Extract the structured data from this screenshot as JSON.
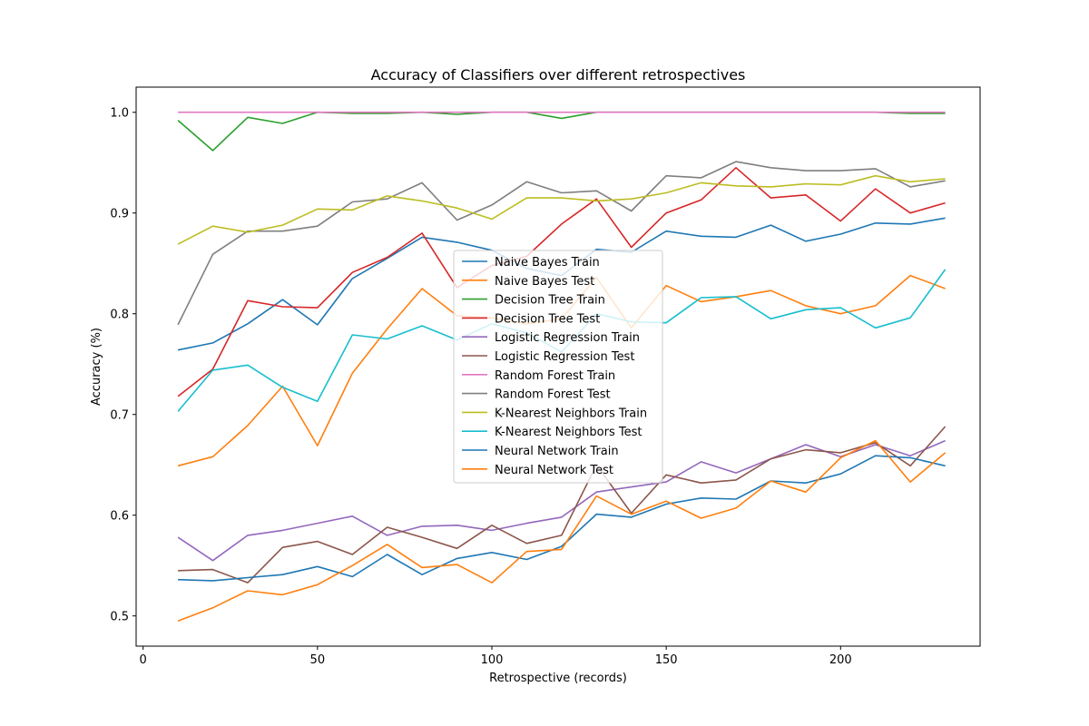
{
  "chart_data": {
    "type": "line",
    "title": "Accuracy of Classifiers over different retrospectives",
    "xlabel": "Retrospective (records)",
    "ylabel": "Accuracy (%)",
    "xlim": [
      -2,
      240
    ],
    "ylim": [
      0.47,
      1.025
    ],
    "xticks": [
      0,
      50,
      100,
      150,
      200
    ],
    "yticks": [
      0.5,
      0.6,
      0.7,
      0.8,
      0.9,
      1.0
    ],
    "ytick_labels": [
      "0.5",
      "0.6",
      "0.7",
      "0.8",
      "0.9",
      "1.0"
    ],
    "grid": false,
    "legend_position": "center",
    "x": [
      10,
      20,
      30,
      40,
      50,
      60,
      70,
      80,
      90,
      100,
      110,
      120,
      130,
      140,
      150,
      160,
      170,
      180,
      190,
      200,
      210,
      220,
      230
    ],
    "series": [
      {
        "name": "Naive Bayes Train",
        "color": "#1f77b4",
        "values": [
          0.764,
          0.771,
          0.79,
          0.814,
          0.789,
          0.835,
          0.855,
          0.876,
          0.871,
          0.863,
          0.845,
          0.838,
          0.864,
          0.861,
          0.882,
          0.877,
          0.876,
          0.888,
          0.872,
          0.879,
          0.89,
          0.889,
          0.895
        ]
      },
      {
        "name": "Naive Bayes Test",
        "color": "#ff7f0e",
        "values": [
          0.649,
          0.658,
          0.689,
          0.728,
          0.669,
          0.741,
          0.785,
          0.825,
          0.798,
          0.796,
          0.79,
          0.795,
          0.836,
          0.786,
          0.828,
          0.812,
          0.817,
          0.823,
          0.808,
          0.8,
          0.808,
          0.838,
          0.825
        ]
      },
      {
        "name": "Decision Tree Train",
        "color": "#2ca02c",
        "values": [
          0.992,
          0.962,
          0.995,
          0.989,
          1.0,
          0.999,
          0.999,
          1.0,
          0.998,
          1.0,
          1.0,
          0.994,
          1.0,
          1.0,
          1.0,
          1.0,
          1.0,
          1.0,
          1.0,
          1.0,
          1.0,
          0.999,
          0.999
        ]
      },
      {
        "name": "Decision Tree Test",
        "color": "#d62728",
        "values": [
          0.718,
          0.745,
          0.813,
          0.807,
          0.806,
          0.841,
          0.856,
          0.88,
          0.826,
          0.848,
          0.857,
          0.889,
          0.914,
          0.866,
          0.9,
          0.913,
          0.945,
          0.915,
          0.918,
          0.892,
          0.924,
          0.9,
          0.91
        ]
      },
      {
        "name": "Logistic Regression Train",
        "color": "#9467bd",
        "values": [
          0.578,
          0.555,
          0.58,
          0.585,
          0.592,
          0.599,
          0.58,
          0.589,
          0.59,
          0.585,
          0.592,
          0.598,
          0.623,
          0.628,
          0.633,
          0.653,
          0.642,
          0.656,
          0.67,
          0.658,
          0.67,
          0.659,
          0.674
        ]
      },
      {
        "name": "Logistic Regression Test",
        "color": "#8c564b",
        "values": [
          0.545,
          0.546,
          0.533,
          0.568,
          0.574,
          0.561,
          0.588,
          0.578,
          0.567,
          0.59,
          0.572,
          0.58,
          0.65,
          0.602,
          0.64,
          0.632,
          0.635,
          0.656,
          0.665,
          0.662,
          0.672,
          0.649,
          0.688
        ]
      },
      {
        "name": "Random Forest Train",
        "color": "#e377c2",
        "values": [
          1.0,
          1.0,
          1.0,
          1.0,
          1.0,
          1.0,
          1.0,
          1.0,
          1.0,
          1.0,
          1.0,
          1.0,
          1.0,
          1.0,
          1.0,
          1.0,
          1.0,
          1.0,
          1.0,
          1.0,
          1.0,
          1.0,
          1.0
        ]
      },
      {
        "name": "Random Forest Test",
        "color": "#7f7f7f",
        "values": [
          0.789,
          0.859,
          0.882,
          0.882,
          0.887,
          0.911,
          0.914,
          0.93,
          0.893,
          0.908,
          0.931,
          0.92,
          0.922,
          0.902,
          0.937,
          0.935,
          0.951,
          0.945,
          0.942,
          0.942,
          0.944,
          0.926,
          0.932
        ]
      },
      {
        "name": "K-Nearest Neighbors Train",
        "color": "#bcbd22",
        "values": [
          0.869,
          0.887,
          0.881,
          0.888,
          0.904,
          0.903,
          0.917,
          0.912,
          0.905,
          0.894,
          0.915,
          0.915,
          0.912,
          0.914,
          0.92,
          0.93,
          0.927,
          0.926,
          0.929,
          0.928,
          0.937,
          0.931,
          0.934
        ]
      },
      {
        "name": "K-Nearest Neighbors Test",
        "color": "#17becf",
        "values": [
          0.703,
          0.744,
          0.749,
          0.727,
          0.713,
          0.779,
          0.775,
          0.788,
          0.774,
          0.79,
          0.781,
          0.762,
          0.8,
          0.792,
          0.791,
          0.816,
          0.817,
          0.795,
          0.804,
          0.806,
          0.786,
          0.796,
          0.844
        ]
      },
      {
        "name": "Neural Network Train",
        "color": "#1f77b4",
        "values": [
          0.536,
          0.535,
          0.538,
          0.541,
          0.549,
          0.539,
          0.561,
          0.541,
          0.557,
          0.563,
          0.556,
          0.569,
          0.601,
          0.598,
          0.611,
          0.617,
          0.616,
          0.634,
          0.632,
          0.641,
          0.659,
          0.657,
          0.649
        ]
      },
      {
        "name": "Neural Network Test",
        "color": "#ff7f0e",
        "values": [
          0.495,
          0.508,
          0.525,
          0.521,
          0.531,
          0.55,
          0.571,
          0.548,
          0.551,
          0.533,
          0.564,
          0.566,
          0.619,
          0.601,
          0.614,
          0.597,
          0.607,
          0.634,
          0.623,
          0.657,
          0.674,
          0.633,
          0.662
        ]
      }
    ]
  }
}
